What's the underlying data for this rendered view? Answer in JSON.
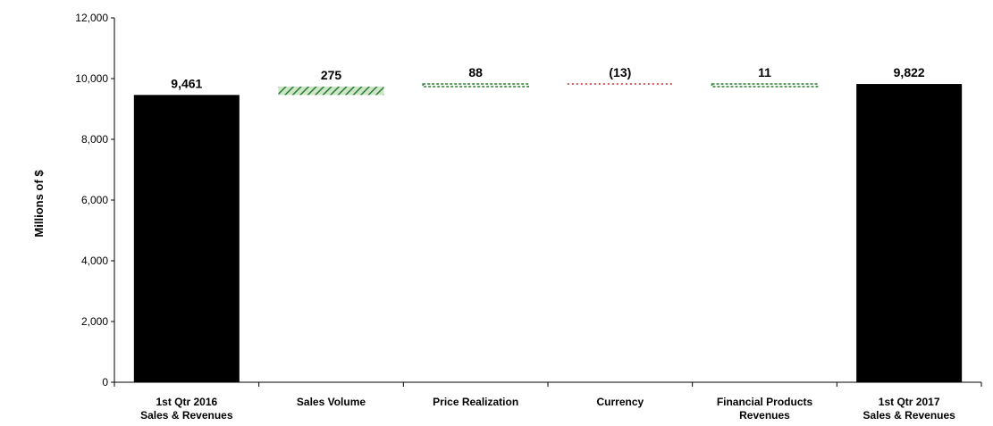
{
  "chart_data": {
    "type": "bar",
    "subtype": "waterfall",
    "ylabel": "Millions of $",
    "ylim": [
      0,
      12000
    ],
    "yticks": [
      0,
      2000,
      4000,
      6000,
      8000,
      10000,
      12000
    ],
    "ytick_labels": [
      "0",
      "2,000",
      "4,000",
      "6,000",
      "8,000",
      "10,000",
      "12,000"
    ],
    "grid": false,
    "legend": "none",
    "categories": [
      [
        "1st Qtr 2016",
        "Sales & Revenues"
      ],
      [
        "Sales Volume"
      ],
      [
        "Price Realization"
      ],
      [
        "Currency"
      ],
      [
        "Financial Products",
        "Revenues"
      ],
      [
        "1st Qtr 2017",
        "Sales & Revenues"
      ]
    ],
    "bars": [
      {
        "kind": "total",
        "value": 9461,
        "label": "9,461",
        "color": "#000000"
      },
      {
        "kind": "delta",
        "value": 275,
        "label": "275",
        "color": "#2e7d32",
        "style": "hatched"
      },
      {
        "kind": "delta",
        "value": 88,
        "label": "88",
        "color": "#2e7d32",
        "style": "dashed"
      },
      {
        "kind": "delta",
        "value": -13,
        "label": "(13)",
        "color": "#c62828",
        "style": "dotted"
      },
      {
        "kind": "delta",
        "value": 11,
        "label": "11",
        "color": "#2e7d32",
        "style": "dashed"
      },
      {
        "kind": "total",
        "value": 9822,
        "label": "9,822",
        "color": "#000000"
      }
    ]
  }
}
